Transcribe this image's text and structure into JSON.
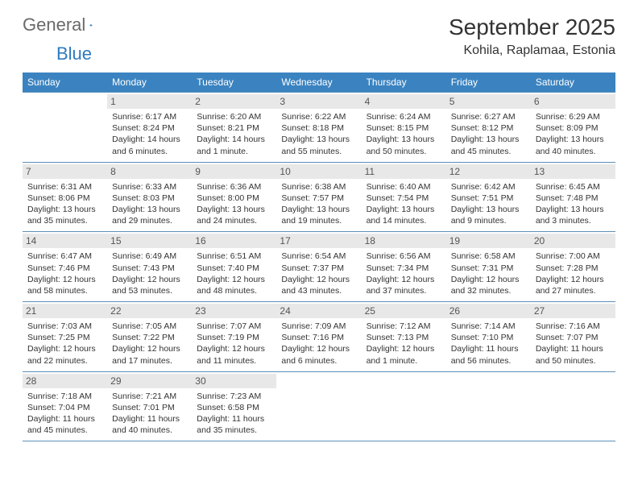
{
  "logo": {
    "text1": "General",
    "text2": "Blue"
  },
  "title": "September 2025",
  "location": "Kohila, Raplamaa, Estonia",
  "colors": {
    "header_bg": "#3b83c0",
    "header_text": "#ffffff",
    "daynum_bg": "#e8e8e8",
    "border": "#5b8fb9",
    "logo_gray": "#6a6a6a",
    "logo_blue": "#2f7bbf"
  },
  "weekdays": [
    "Sunday",
    "Monday",
    "Tuesday",
    "Wednesday",
    "Thursday",
    "Friday",
    "Saturday"
  ],
  "first_weekday_index": 1,
  "days": [
    {
      "n": 1,
      "sunrise": "6:17 AM",
      "sunset": "8:24 PM",
      "daylight": "14 hours and 6 minutes."
    },
    {
      "n": 2,
      "sunrise": "6:20 AM",
      "sunset": "8:21 PM",
      "daylight": "14 hours and 1 minute."
    },
    {
      "n": 3,
      "sunrise": "6:22 AM",
      "sunset": "8:18 PM",
      "daylight": "13 hours and 55 minutes."
    },
    {
      "n": 4,
      "sunrise": "6:24 AM",
      "sunset": "8:15 PM",
      "daylight": "13 hours and 50 minutes."
    },
    {
      "n": 5,
      "sunrise": "6:27 AM",
      "sunset": "8:12 PM",
      "daylight": "13 hours and 45 minutes."
    },
    {
      "n": 6,
      "sunrise": "6:29 AM",
      "sunset": "8:09 PM",
      "daylight": "13 hours and 40 minutes."
    },
    {
      "n": 7,
      "sunrise": "6:31 AM",
      "sunset": "8:06 PM",
      "daylight": "13 hours and 35 minutes."
    },
    {
      "n": 8,
      "sunrise": "6:33 AM",
      "sunset": "8:03 PM",
      "daylight": "13 hours and 29 minutes."
    },
    {
      "n": 9,
      "sunrise": "6:36 AM",
      "sunset": "8:00 PM",
      "daylight": "13 hours and 24 minutes."
    },
    {
      "n": 10,
      "sunrise": "6:38 AM",
      "sunset": "7:57 PM",
      "daylight": "13 hours and 19 minutes."
    },
    {
      "n": 11,
      "sunrise": "6:40 AM",
      "sunset": "7:54 PM",
      "daylight": "13 hours and 14 minutes."
    },
    {
      "n": 12,
      "sunrise": "6:42 AM",
      "sunset": "7:51 PM",
      "daylight": "13 hours and 9 minutes."
    },
    {
      "n": 13,
      "sunrise": "6:45 AM",
      "sunset": "7:48 PM",
      "daylight": "13 hours and 3 minutes."
    },
    {
      "n": 14,
      "sunrise": "6:47 AM",
      "sunset": "7:46 PM",
      "daylight": "12 hours and 58 minutes."
    },
    {
      "n": 15,
      "sunrise": "6:49 AM",
      "sunset": "7:43 PM",
      "daylight": "12 hours and 53 minutes."
    },
    {
      "n": 16,
      "sunrise": "6:51 AM",
      "sunset": "7:40 PM",
      "daylight": "12 hours and 48 minutes."
    },
    {
      "n": 17,
      "sunrise": "6:54 AM",
      "sunset": "7:37 PM",
      "daylight": "12 hours and 43 minutes."
    },
    {
      "n": 18,
      "sunrise": "6:56 AM",
      "sunset": "7:34 PM",
      "daylight": "12 hours and 37 minutes."
    },
    {
      "n": 19,
      "sunrise": "6:58 AM",
      "sunset": "7:31 PM",
      "daylight": "12 hours and 32 minutes."
    },
    {
      "n": 20,
      "sunrise": "7:00 AM",
      "sunset": "7:28 PM",
      "daylight": "12 hours and 27 minutes."
    },
    {
      "n": 21,
      "sunrise": "7:03 AM",
      "sunset": "7:25 PM",
      "daylight": "12 hours and 22 minutes."
    },
    {
      "n": 22,
      "sunrise": "7:05 AM",
      "sunset": "7:22 PM",
      "daylight": "12 hours and 17 minutes."
    },
    {
      "n": 23,
      "sunrise": "7:07 AM",
      "sunset": "7:19 PM",
      "daylight": "12 hours and 11 minutes."
    },
    {
      "n": 24,
      "sunrise": "7:09 AM",
      "sunset": "7:16 PM",
      "daylight": "12 hours and 6 minutes."
    },
    {
      "n": 25,
      "sunrise": "7:12 AM",
      "sunset": "7:13 PM",
      "daylight": "12 hours and 1 minute."
    },
    {
      "n": 26,
      "sunrise": "7:14 AM",
      "sunset": "7:10 PM",
      "daylight": "11 hours and 56 minutes."
    },
    {
      "n": 27,
      "sunrise": "7:16 AM",
      "sunset": "7:07 PM",
      "daylight": "11 hours and 50 minutes."
    },
    {
      "n": 28,
      "sunrise": "7:18 AM",
      "sunset": "7:04 PM",
      "daylight": "11 hours and 45 minutes."
    },
    {
      "n": 29,
      "sunrise": "7:21 AM",
      "sunset": "7:01 PM",
      "daylight": "11 hours and 40 minutes."
    },
    {
      "n": 30,
      "sunrise": "7:23 AM",
      "sunset": "6:58 PM",
      "daylight": "11 hours and 35 minutes."
    }
  ],
  "labels": {
    "sunrise": "Sunrise:",
    "sunset": "Sunset:",
    "daylight": "Daylight:"
  }
}
